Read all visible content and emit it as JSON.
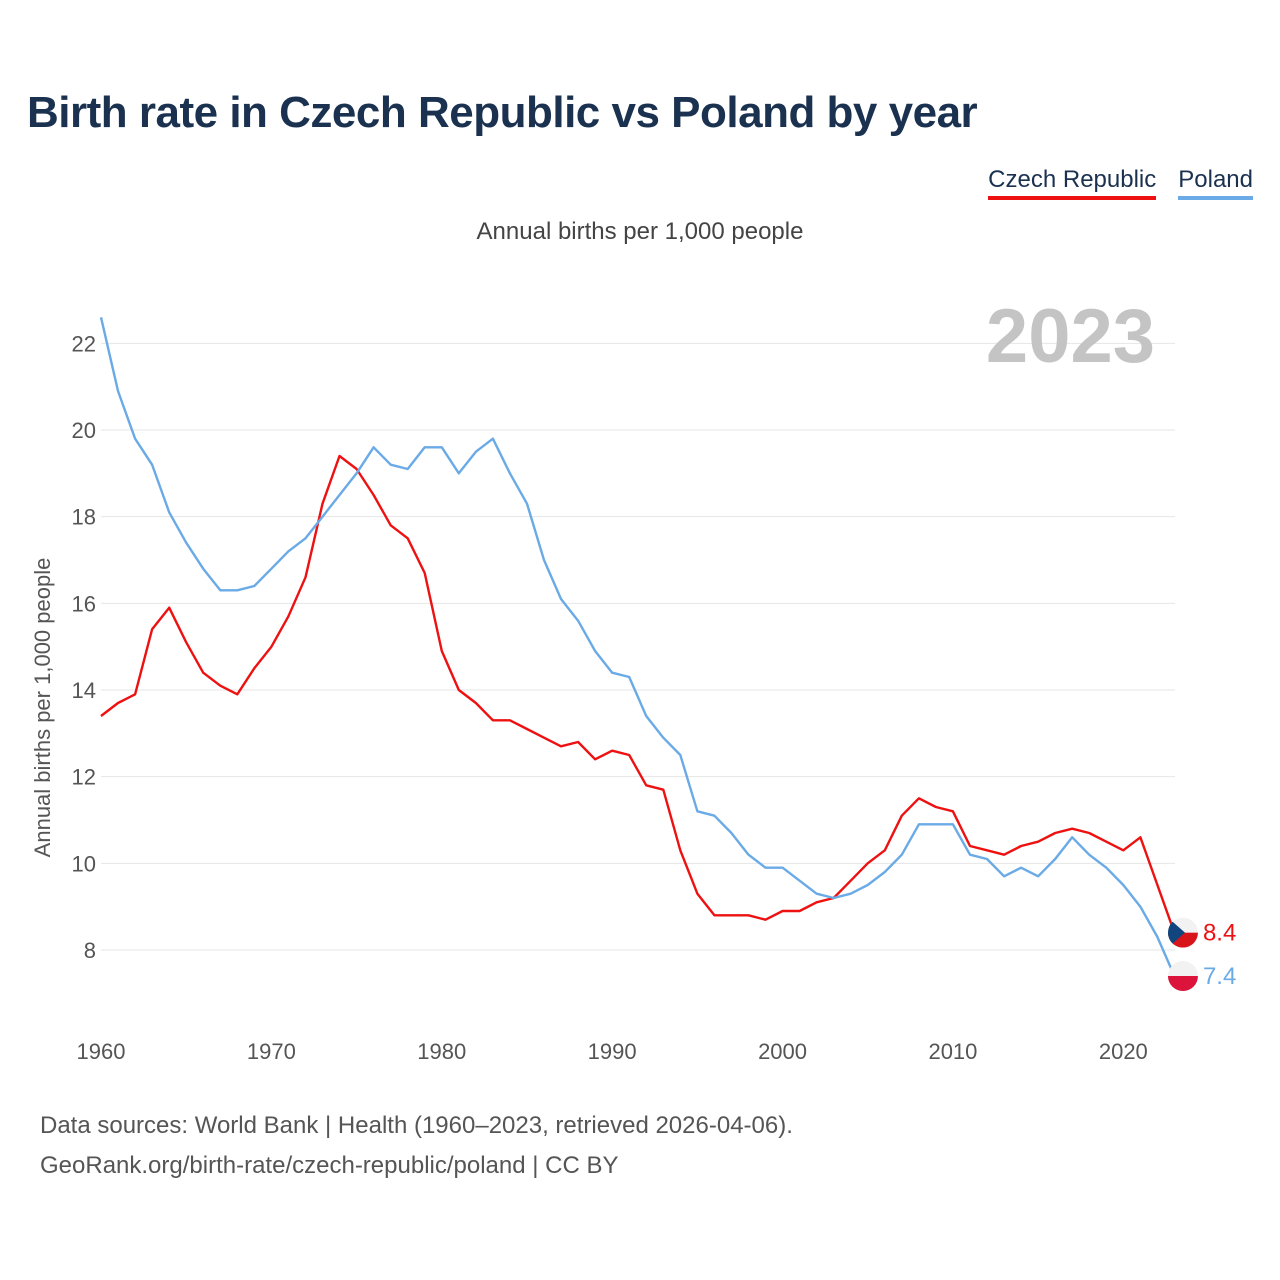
{
  "title": "Birth rate in Czech Republic vs Poland by year",
  "subtitle": "Annual births per 1,000 people",
  "legend": [
    {
      "label": "Czech Republic",
      "color": "#ee1111"
    },
    {
      "label": "Poland",
      "color": "#6aaae6"
    }
  ],
  "footer": {
    "line1": "Data sources: World Bank | Health (1960–2023, retrieved 2026-04-06).",
    "line2": "GeoRank.org/birth-rate/czech-republic/poland | CC BY"
  },
  "chart_data": {
    "type": "line",
    "title": "Birth rate in Czech Republic vs Poland by year",
    "ylabel": "Annual births per 1,000 people",
    "xlabel": "",
    "xlim": [
      1960,
      2024.5
    ],
    "ylim": [
      6.5,
      23
    ],
    "xticks": [
      1960,
      1970,
      1980,
      1990,
      2000,
      2010,
      2020
    ],
    "yticks": [
      8,
      10,
      12,
      14,
      16,
      18,
      20,
      22
    ],
    "year_label": "2023",
    "grid": true,
    "x": [
      1960,
      1961,
      1962,
      1963,
      1964,
      1965,
      1966,
      1967,
      1968,
      1969,
      1970,
      1971,
      1972,
      1973,
      1974,
      1975,
      1976,
      1977,
      1978,
      1979,
      1980,
      1981,
      1982,
      1983,
      1984,
      1985,
      1986,
      1987,
      1988,
      1989,
      1990,
      1991,
      1992,
      1993,
      1994,
      1995,
      1996,
      1997,
      1998,
      1999,
      2000,
      2001,
      2002,
      2003,
      2004,
      2005,
      2006,
      2007,
      2008,
      2009,
      2010,
      2011,
      2012,
      2013,
      2014,
      2015,
      2016,
      2017,
      2018,
      2019,
      2020,
      2021,
      2022,
      2023
    ],
    "series": [
      {
        "name": "Czech Republic",
        "color": "#ee1111",
        "end_label": "8.4",
        "values": [
          13.4,
          13.7,
          13.9,
          15.4,
          15.9,
          15.1,
          14.4,
          14.1,
          13.9,
          14.5,
          15.0,
          15.7,
          16.6,
          18.3,
          19.4,
          19.1,
          18.5,
          17.8,
          17.5,
          16.7,
          14.9,
          14.0,
          13.7,
          13.3,
          13.3,
          13.1,
          12.9,
          12.7,
          12.8,
          12.4,
          12.6,
          12.5,
          11.8,
          11.7,
          10.3,
          9.3,
          8.8,
          8.8,
          8.8,
          8.7,
          8.9,
          8.9,
          9.1,
          9.2,
          9.6,
          10.0,
          10.3,
          11.1,
          11.5,
          11.3,
          11.2,
          10.4,
          10.3,
          10.2,
          10.4,
          10.5,
          10.7,
          10.8,
          10.7,
          10.5,
          10.3,
          10.6,
          9.5,
          8.4
        ]
      },
      {
        "name": "Poland",
        "color": "#6aaae6",
        "end_label": "7.4",
        "values": [
          22.6,
          20.9,
          19.8,
          19.2,
          18.1,
          17.4,
          16.8,
          16.3,
          16.3,
          16.4,
          16.8,
          17.2,
          17.5,
          18.0,
          18.5,
          19.0,
          19.6,
          19.2,
          19.1,
          19.6,
          19.6,
          19.0,
          19.5,
          19.8,
          19.0,
          18.3,
          17.0,
          16.1,
          15.6,
          14.9,
          14.4,
          14.3,
          13.4,
          12.9,
          12.5,
          11.2,
          11.1,
          10.7,
          10.2,
          9.9,
          9.9,
          9.6,
          9.3,
          9.2,
          9.3,
          9.5,
          9.8,
          10.2,
          10.9,
          10.9,
          10.9,
          10.2,
          10.1,
          9.7,
          9.9,
          9.7,
          10.1,
          10.6,
          10.2,
          9.9,
          9.5,
          9.0,
          8.3,
          7.4
        ]
      }
    ]
  }
}
